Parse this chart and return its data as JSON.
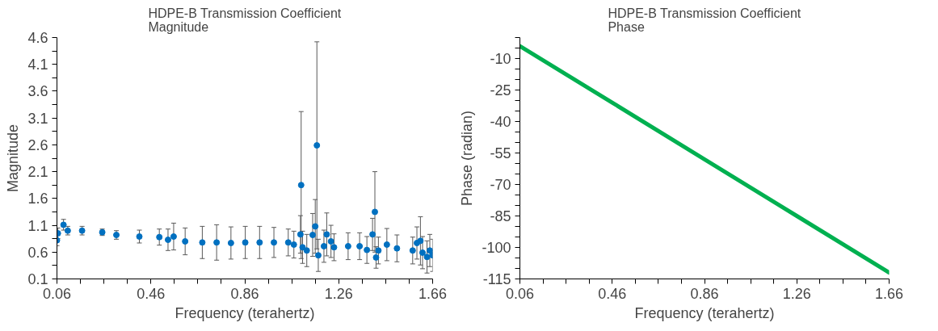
{
  "chart_data": [
    {
      "type": "scatter",
      "title": "HDPE-B Transmission Coefficient\nMagnitude",
      "xlabel": "Frequency (terahertz)",
      "ylabel": "Magnitude",
      "x": [
        0.06,
        0.064,
        0.088,
        0.106,
        0.167,
        0.253,
        0.313,
        0.411,
        0.496,
        0.533,
        0.557,
        0.606,
        0.679,
        0.74,
        0.801,
        0.862,
        0.923,
        0.984,
        1.045,
        1.069,
        1.097,
        1.1,
        1.106,
        1.124,
        1.149,
        1.16,
        1.167,
        1.173,
        1.197,
        1.209,
        1.227,
        1.24,
        1.3,
        1.349,
        1.38,
        1.404,
        1.414,
        1.419,
        1.429,
        1.465,
        1.508,
        1.575,
        1.593,
        1.608,
        1.617,
        1.636,
        1.648,
        1.66
      ],
      "series": [
        {
          "color": "#0070c0",
          "values": [
            0.82,
            0.95,
            1.11,
            1.0,
            1.0,
            0.97,
            0.92,
            0.89,
            0.88,
            0.83,
            0.89,
            0.8,
            0.78,
            0.78,
            0.77,
            0.78,
            0.78,
            0.78,
            0.78,
            0.74,
            0.93,
            1.85,
            0.69,
            0.63,
            0.92,
            1.08,
            2.59,
            0.54,
            0.71,
            0.93,
            0.8,
            0.69,
            0.71,
            0.71,
            0.64,
            0.93,
            1.35,
            0.5,
            0.63,
            0.74,
            0.67,
            0.63,
            0.77,
            0.81,
            0.59,
            0.51,
            0.63,
            0.54
          ],
          "errors": [
            0.1,
            0.1,
            0.1,
            0.08,
            0.08,
            0.06,
            0.08,
            0.12,
            0.15,
            0.2,
            0.25,
            0.25,
            0.3,
            0.33,
            0.3,
            0.3,
            0.3,
            0.28,
            0.25,
            0.25,
            0.35,
            1.37,
            0.3,
            0.3,
            0.4,
            0.5,
            1.93,
            0.3,
            0.3,
            0.4,
            0.3,
            0.25,
            0.25,
            0.25,
            0.25,
            0.3,
            0.75,
            0.2,
            0.25,
            0.3,
            0.25,
            0.25,
            0.3,
            0.45,
            0.3,
            0.3,
            0.3,
            0.3
          ]
        }
      ],
      "marker": "circle",
      "grid": false,
      "xlim": [
        0.06,
        1.66
      ],
      "ylim": [
        0.1,
        4.6
      ],
      "xticks": [
        0.06,
        {
          "value": 0.16,
          "label": null
        },
        {
          "value": 0.26,
          "label": null
        },
        {
          "value": 0.36,
          "label": null
        },
        0.46,
        {
          "value": 0.56,
          "label": null
        },
        {
          "value": 0.66,
          "label": null
        },
        {
          "value": 0.76,
          "label": null
        },
        0.86,
        {
          "value": 0.96,
          "label": null
        },
        {
          "value": 1.06,
          "label": null
        },
        {
          "value": 1.16,
          "label": null
        },
        1.26,
        {
          "value": 1.36,
          "label": null
        },
        {
          "value": 1.46,
          "label": null
        },
        {
          "value": 1.56,
          "label": null
        },
        1.66
      ],
      "yticks": [
        0.1,
        {
          "value": 0.35,
          "label": null
        },
        0.6,
        {
          "value": 0.85,
          "label": null
        },
        1.1,
        {
          "value": 1.35,
          "label": null
        },
        1.6,
        {
          "value": 1.85,
          "label": null
        },
        2.1,
        {
          "value": 2.35,
          "label": null
        },
        2.6,
        {
          "value": 2.85,
          "label": null
        },
        3.1,
        {
          "value": 3.35,
          "label": null
        },
        3.6,
        {
          "value": 3.85,
          "label": null
        },
        4.1,
        {
          "value": 4.35,
          "label": null
        },
        4.6
      ]
    },
    {
      "type": "line",
      "title": "HDPE-B Transmission Coefficient\nPhase",
      "xlabel": "Frequency (terahertz)",
      "ylabel": "Phase (radian)",
      "x": [
        0.06,
        0.46,
        0.86,
        1.26,
        1.66
      ],
      "series": [
        {
          "color": "#00b050",
          "values": [
            -4.1,
            -31,
            -58,
            -85,
            -112
          ]
        }
      ],
      "marker": "none",
      "grid": false,
      "xlim": [
        0.06,
        1.66
      ],
      "ylim": [
        -115,
        0
      ],
      "xticks": [
        0.06,
        {
          "value": 0.16,
          "label": null
        },
        {
          "value": 0.26,
          "label": null
        },
        {
          "value": 0.36,
          "label": null
        },
        0.46,
        {
          "value": 0.56,
          "label": null
        },
        {
          "value": 0.66,
          "label": null
        },
        {
          "value": 0.76,
          "label": null
        },
        0.86,
        {
          "value": 0.96,
          "label": null
        },
        {
          "value": 1.06,
          "label": null
        },
        {
          "value": 1.16,
          "label": null
        },
        1.26,
        {
          "value": 1.36,
          "label": null
        },
        {
          "value": 1.46,
          "label": null
        },
        {
          "value": 1.56,
          "label": null
        },
        1.66
      ],
      "yticks": [
        -115,
        {
          "value": -110,
          "label": null
        },
        {
          "value": -105,
          "label": null
        },
        -100,
        {
          "value": -95,
          "label": null
        },
        {
          "value": -90,
          "label": null
        },
        -85,
        {
          "value": -80,
          "label": null
        },
        {
          "value": -75,
          "label": null
        },
        -70,
        {
          "value": -65,
          "label": null
        },
        {
          "value": -60,
          "label": null
        },
        -55,
        {
          "value": -50,
          "label": null
        },
        {
          "value": -45,
          "label": null
        },
        -40,
        {
          "value": -35,
          "label": null
        },
        {
          "value": -30,
          "label": null
        },
        -25,
        {
          "value": -20,
          "label": null
        },
        {
          "value": -15,
          "label": null
        },
        -10,
        {
          "value": -5,
          "label": null
        },
        {
          "value": 0,
          "label": null
        }
      ]
    }
  ]
}
